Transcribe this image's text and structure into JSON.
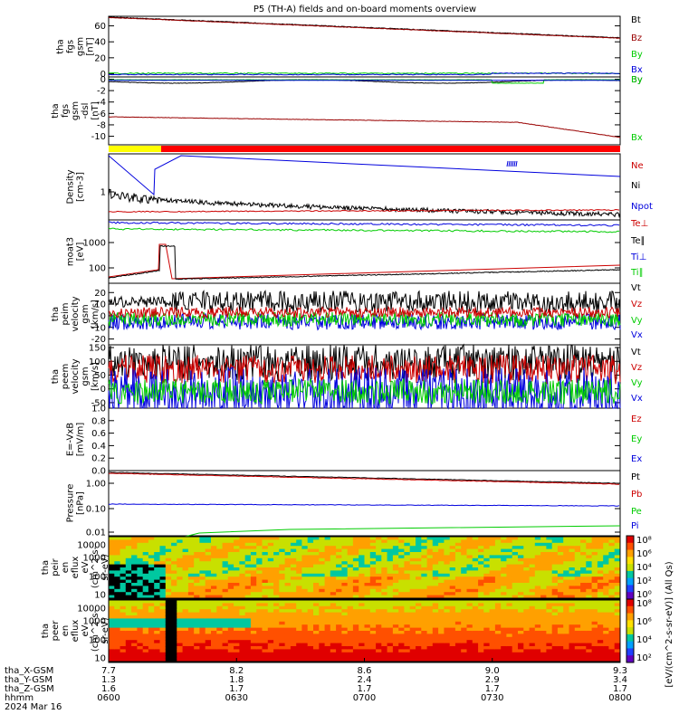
{
  "title": "P5 (TH-A) fields and on-board moments overview",
  "colors": {
    "black": "#000000",
    "red": "#cc0000",
    "darkred": "#990000",
    "blue": "#0000dd",
    "green": "#00cc00",
    "yellow": "#ffff00"
  },
  "chart_data": [
    {
      "type": "line",
      "panel": "fgs-gsm",
      "ylabel": [
        "tha",
        "fgs",
        "gsm",
        "[nT]"
      ],
      "yticks": [
        "60",
        "40",
        "20",
        "0"
      ],
      "ylim": [
        -4,
        72
      ],
      "series": [
        {
          "name": "Bt",
          "color": "black"
        },
        {
          "name": "Bz",
          "color": "darkred"
        },
        {
          "name": "By",
          "color": "green"
        },
        {
          "name": "Bx",
          "color": "blue"
        }
      ]
    },
    {
      "type": "line",
      "panel": "fgs-dsl",
      "ylabel": [
        "tha",
        "fgs",
        "gsm",
        "-dsl",
        "[nT]"
      ],
      "yticks": [
        "0",
        "-2",
        "-4",
        "-6",
        "-8",
        "-10"
      ],
      "ylim": [
        -11.5,
        0.4
      ],
      "series": [
        {
          "name": "By",
          "color": "black"
        },
        {
          "name": "Bx",
          "color": "green"
        },
        {
          "name": "Bz",
          "color": "darkred"
        }
      ]
    },
    {
      "type": "line",
      "panel": "density",
      "ylabel": [
        "Density",
        "[cm-3]"
      ],
      "log": true,
      "yticks": [
        "1"
      ],
      "series": [
        {
          "name": "Ne",
          "color": "red"
        },
        {
          "name": "Ni",
          "color": "black"
        },
        {
          "name": "Npot",
          "color": "blue"
        }
      ]
    },
    {
      "type": "line",
      "panel": "temperature",
      "ylabel": [
        "moat3",
        "[eV]"
      ],
      "log": true,
      "yticks": [
        "1000",
        "100"
      ],
      "series": [
        {
          "name": "Te⊥",
          "color": "red"
        },
        {
          "name": "Te∥",
          "color": "black"
        },
        {
          "name": "Ti⊥",
          "color": "blue"
        },
        {
          "name": "Ti∥",
          "color": "green"
        }
      ]
    },
    {
      "type": "line",
      "panel": "peim-velocity",
      "ylabel": [
        "tha",
        "peim",
        "velocity",
        "gsm",
        "[km/s]"
      ],
      "yticks": [
        "20",
        "10",
        "0",
        "-10",
        "-20"
      ],
      "ylim": [
        -25,
        28
      ],
      "series": [
        {
          "name": "Vt",
          "color": "black"
        },
        {
          "name": "Vz",
          "color": "red"
        },
        {
          "name": "Vy",
          "color": "green"
        },
        {
          "name": "Vx",
          "color": "blue"
        }
      ]
    },
    {
      "type": "line",
      "panel": "peem-velocity",
      "ylabel": [
        "tha",
        "peem",
        "velocity",
        "gsm",
        "[km/s]"
      ],
      "yticks": [
        "150",
        "100",
        "50",
        "0",
        "-50"
      ],
      "ylim": [
        -70,
        160
      ],
      "series": [
        {
          "name": "Vt",
          "color": "black"
        },
        {
          "name": "Vz",
          "color": "red"
        },
        {
          "name": "Vy",
          "color": "green"
        },
        {
          "name": "Vx",
          "color": "blue"
        }
      ]
    },
    {
      "type": "line",
      "panel": "efield",
      "ylabel": [
        "E=-VxB",
        "[mV/m]"
      ],
      "yticks": [
        "1.0",
        "0.8",
        "0.6",
        "0.4",
        "0.2",
        "0.0"
      ],
      "ylim": [
        0,
        1
      ],
      "series": [
        {
          "name": "Ez",
          "color": "red"
        },
        {
          "name": "Ey",
          "color": "green"
        },
        {
          "name": "Ex",
          "color": "blue"
        }
      ]
    },
    {
      "type": "line",
      "panel": "pressure",
      "ylabel": [
        "Pressure",
        "[nPa]"
      ],
      "log": true,
      "yticks": [
        "1.00",
        "0.10",
        "0.01"
      ],
      "series": [
        {
          "name": "Pt",
          "color": "black"
        },
        {
          "name": "Pb",
          "color": "red"
        },
        {
          "name": "Pe",
          "color": "green"
        },
        {
          "name": "Pi",
          "color": "blue"
        }
      ]
    },
    {
      "type": "heatmap",
      "panel": "peir-spectrogram",
      "ylabel": [
        "tha",
        "peir",
        "en",
        "eflux",
        "eV",
        "(cm^2-s-",
        "sr-eV)"
      ],
      "yticks": [
        "10000",
        "1000",
        "100",
        "10"
      ],
      "cbar_ticks": [
        "10⁸",
        "10⁶",
        "10⁴",
        "10²",
        "10⁰"
      ]
    },
    {
      "type": "heatmap",
      "panel": "peer-spectrogram",
      "ylabel": [
        "tha",
        "peer",
        "en",
        "eflux",
        "eV",
        "(cm^2-s-",
        "sr-eV)"
      ],
      "yticks": [
        "10000",
        "1000",
        "100",
        "10"
      ],
      "cbar_ticks": [
        "10⁸",
        "10⁶",
        "10⁴",
        "10²"
      ]
    }
  ],
  "colorbar_label": "[eV/(cm^2-s-sr-eV)] (All Qs)",
  "xaxis": {
    "row_labels": [
      "tha_X-GSM",
      "tha_Y-GSM",
      "tha_Z-GSM",
      "hhmm",
      "2024 Mar 16"
    ],
    "ticks": [
      {
        "x": "7.7",
        "y": "1.3",
        "z": "1.6",
        "t": "0600"
      },
      {
        "x": "8.2",
        "y": "1.8",
        "z": "1.7",
        "t": "0630"
      },
      {
        "x": "8.6",
        "y": "2.4",
        "z": "1.7",
        "t": "0700"
      },
      {
        "x": "9.0",
        "y": "2.9",
        "z": "1.7",
        "t": "0730"
      },
      {
        "x": "9.3",
        "y": "3.4",
        "z": "1.7",
        "t": "0800"
      }
    ]
  }
}
